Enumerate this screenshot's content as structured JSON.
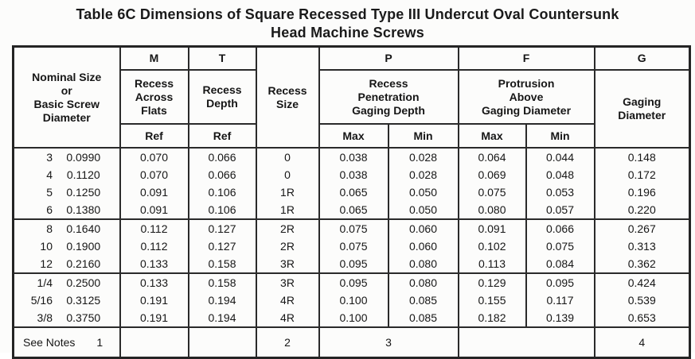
{
  "title": {
    "line1": "Table 6C   Dimensions of Square Recessed Type III Undercut Oval Countersunk",
    "line2": "Head Machine Screws"
  },
  "table": {
    "header": {
      "nominal": "Nominal Size\nor\nBasic Screw\nDiameter",
      "letter_m": "M",
      "letter_t": "T",
      "letter_p": "P",
      "letter_f": "F",
      "letter_g": "G",
      "m_desc": "Recess\nAcross\nFlats",
      "t_desc": "Recess\nDepth",
      "recess_size": "Recess\nSize",
      "p_desc": "Recess\nPenetration\nGaging Depth",
      "f_desc": "Protrusion\nAbove\nGaging Diameter",
      "g_desc": "Gaging\nDiameter",
      "m_sub": "Ref",
      "t_sub": "Ref",
      "p_max": "Max",
      "p_min": "Min",
      "f_max": "Max",
      "f_min": "Min"
    },
    "groups": [
      {
        "rows": [
          {
            "size": "3",
            "diameter": "0.0990",
            "m": "0.070",
            "t": "0.066",
            "recess": "0",
            "p_max": "0.038",
            "p_min": "0.028",
            "f_max": "0.064",
            "f_min": "0.044",
            "g": "0.148"
          },
          {
            "size": "4",
            "diameter": "0.1120",
            "m": "0.070",
            "t": "0.066",
            "recess": "0",
            "p_max": "0.038",
            "p_min": "0.028",
            "f_max": "0.069",
            "f_min": "0.048",
            "g": "0.172"
          },
          {
            "size": "5",
            "diameter": "0.1250",
            "m": "0.091",
            "t": "0.106",
            "recess": "1R",
            "p_max": "0.065",
            "p_min": "0.050",
            "f_max": "0.075",
            "f_min": "0.053",
            "g": "0.196"
          },
          {
            "size": "6",
            "diameter": "0.1380",
            "m": "0.091",
            "t": "0.106",
            "recess": "1R",
            "p_max": "0.065",
            "p_min": "0.050",
            "f_max": "0.080",
            "f_min": "0.057",
            "g": "0.220"
          }
        ]
      },
      {
        "rows": [
          {
            "size": "8",
            "diameter": "0.1640",
            "m": "0.112",
            "t": "0.127",
            "recess": "2R",
            "p_max": "0.075",
            "p_min": "0.060",
            "f_max": "0.091",
            "f_min": "0.066",
            "g": "0.267"
          },
          {
            "size": "10",
            "diameter": "0.1900",
            "m": "0.112",
            "t": "0.127",
            "recess": "2R",
            "p_max": "0.075",
            "p_min": "0.060",
            "f_max": "0.102",
            "f_min": "0.075",
            "g": "0.313"
          },
          {
            "size": "12",
            "diameter": "0.2160",
            "m": "0.133",
            "t": "0.158",
            "recess": "3R",
            "p_max": "0.095",
            "p_min": "0.080",
            "f_max": "0.113",
            "f_min": "0.084",
            "g": "0.362"
          }
        ]
      },
      {
        "rows": [
          {
            "size": "1/4",
            "diameter": "0.2500",
            "m": "0.133",
            "t": "0.158",
            "recess": "3R",
            "p_max": "0.095",
            "p_min": "0.080",
            "f_max": "0.129",
            "f_min": "0.095",
            "g": "0.424"
          },
          {
            "size": "5/16",
            "diameter": "0.3125",
            "m": "0.191",
            "t": "0.194",
            "recess": "4R",
            "p_max": "0.100",
            "p_min": "0.085",
            "f_max": "0.155",
            "f_min": "0.117",
            "g": "0.539"
          },
          {
            "size": "3/8",
            "diameter": "0.3750",
            "m": "0.191",
            "t": "0.194",
            "recess": "4R",
            "p_max": "0.100",
            "p_min": "0.085",
            "f_max": "0.182",
            "f_min": "0.139",
            "g": "0.653"
          }
        ]
      }
    ],
    "footer": {
      "label": "See Notes",
      "note_nominal": "1",
      "note_recess": "2",
      "note_p": "3",
      "note_g": "4"
    }
  }
}
